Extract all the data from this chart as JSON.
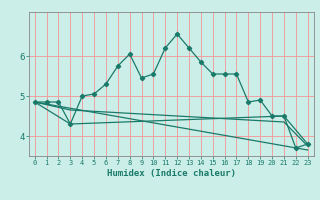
{
  "xlabel": "Humidex (Indice chaleur)",
  "ylabel": "",
  "background_color": "#cceee8",
  "grid_color": "#f0a0a0",
  "line_color": "#1a7a6a",
  "xlim": [
    -0.5,
    23.5
  ],
  "ylim": [
    3.5,
    7.1
  ],
  "xticks": [
    0,
    1,
    2,
    3,
    4,
    5,
    6,
    7,
    8,
    9,
    10,
    11,
    12,
    13,
    14,
    15,
    16,
    17,
    18,
    19,
    20,
    21,
    22,
    23
  ],
  "yticks": [
    4,
    5,
    6
  ],
  "line1_x": [
    0,
    1,
    2,
    3,
    4,
    5,
    6,
    7,
    8,
    9,
    10,
    11,
    12,
    13,
    14,
    15,
    16,
    17,
    18,
    19,
    20,
    21,
    22,
    23
  ],
  "line1_y": [
    4.85,
    4.85,
    4.85,
    4.3,
    5.0,
    5.05,
    5.3,
    5.75,
    6.05,
    5.45,
    5.55,
    6.2,
    6.55,
    6.2,
    5.85,
    5.55,
    5.55,
    5.55,
    4.85,
    4.9,
    4.5,
    4.5,
    3.7,
    3.8
  ],
  "line2_x": [
    0,
    3,
    21,
    23
  ],
  "line2_y": [
    4.85,
    4.3,
    4.5,
    3.8
  ],
  "line3_x": [
    0,
    23
  ],
  "line3_y": [
    4.85,
    3.65
  ],
  "line4_x": [
    0,
    3,
    21,
    23
  ],
  "line4_y": [
    4.85,
    4.65,
    4.35,
    3.75
  ]
}
